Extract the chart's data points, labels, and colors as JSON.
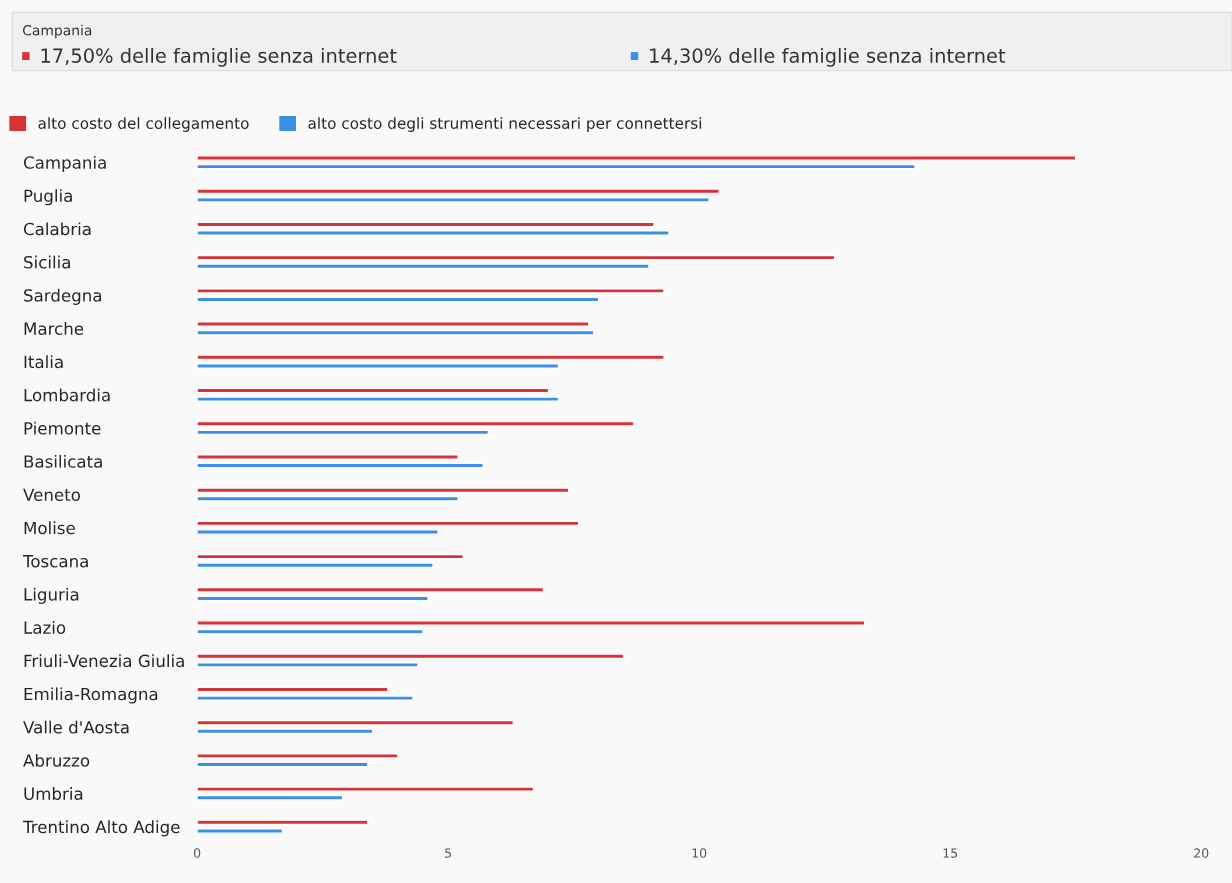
{
  "chart_data": {
    "type": "bar",
    "orientation": "horizontal",
    "title": "Campania",
    "annotations": [
      "17,50% delle famiglie senza internet",
      "14,30% delle famiglie senza internet"
    ],
    "categories": [
      "Campania",
      "Puglia",
      "Calabria",
      "Sicilia",
      "Sardegna",
      "Marche",
      "Italia",
      "Lombardia",
      "Piemonte",
      "Basilicata",
      "Veneto",
      "Molise",
      "Toscana",
      "Liguria",
      "Lazio",
      "Friuli-Venezia Giulia",
      "Emilia-Romagna",
      "Valle d'Aosta",
      "Abruzzo",
      "Umbria",
      "Trentino Alto Adige"
    ],
    "series": [
      {
        "name": "alto costo del collegamento",
        "color": "#d63238",
        "values": [
          17.5,
          10.4,
          9.1,
          12.7,
          9.3,
          7.8,
          9.3,
          7.0,
          8.7,
          5.2,
          7.4,
          7.6,
          5.3,
          6.9,
          13.3,
          8.5,
          3.8,
          6.3,
          4.0,
          6.7,
          3.4
        ]
      },
      {
        "name": "alto costo degli strumenti necessari per connettersi",
        "color": "#3b8fe8",
        "values": [
          14.3,
          10.2,
          9.4,
          9.0,
          8.0,
          7.9,
          7.2,
          7.2,
          5.8,
          5.7,
          5.2,
          4.8,
          4.7,
          4.6,
          4.5,
          4.4,
          4.3,
          3.5,
          3.4,
          2.9,
          1.7
        ]
      }
    ],
    "xlim": [
      0,
      20
    ],
    "xticks": [
      0,
      5,
      10,
      15,
      20
    ],
    "grid": false,
    "legend": "top left"
  }
}
